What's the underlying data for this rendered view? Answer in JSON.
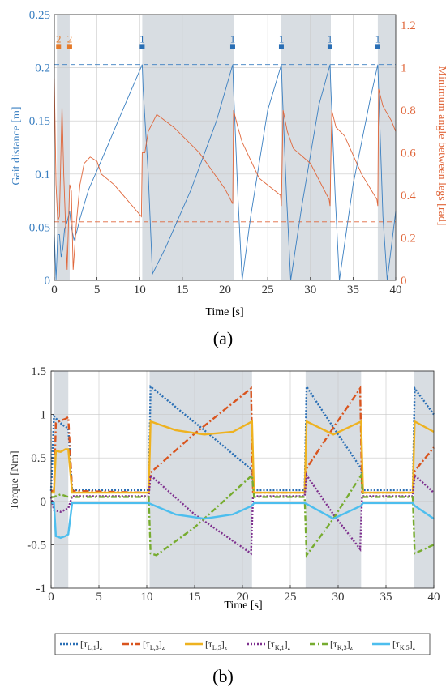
{
  "chart_data": [
    {
      "type": "line",
      "panel_label": "(a)",
      "xlabel": "Time [s]",
      "ylabel_left": "Gait distance [m]",
      "ylabel_right": "Minimum angle between legs [rad]",
      "xlim": [
        0,
        40
      ],
      "ylim_left": [
        0,
        0.25
      ],
      "ylim_right": [
        0,
        1.25
      ],
      "xticks": [
        "0",
        "5",
        "10",
        "15",
        "20",
        "25",
        "30",
        "35",
        "40"
      ],
      "yticks_left": [
        "0",
        "0.05",
        "0.1",
        "0.15",
        "0.2",
        "0.25"
      ],
      "yticks_right": [
        "0",
        "0.2",
        "0.4",
        "0.6",
        "0.8",
        "1",
        "1.2"
      ],
      "grid": true,
      "colors": {
        "left": "#3a7fc1",
        "right": "#e0663a",
        "shade": "#d8dde2",
        "marker1": "#2a6fb5",
        "marker2": "#e57b2b"
      },
      "shaded_intervals": [
        [
          0.3,
          1.8
        ],
        [
          10.3,
          21.0
        ],
        [
          26.6,
          32.4
        ],
        [
          37.9,
          40
        ]
      ],
      "reference_lines": [
        {
          "axis": "left",
          "y": 0.203
        },
        {
          "axis": "right",
          "y": 0.275
        }
      ],
      "markers": [
        {
          "label": "2",
          "x": 0.5,
          "color": "orange"
        },
        {
          "label": "2",
          "x": 1.8,
          "color": "orange"
        },
        {
          "label": "1",
          "x": 10.3,
          "color": "blue"
        },
        {
          "label": "1",
          "x": 20.9,
          "color": "blue"
        },
        {
          "label": "1",
          "x": 26.6,
          "color": "blue"
        },
        {
          "label": "1",
          "x": 32.3,
          "color": "blue"
        },
        {
          "label": "1",
          "x": 37.9,
          "color": "blue"
        }
      ],
      "series": [
        {
          "axis": "left",
          "x": [
            0,
            0.2,
            0.4,
            0.6,
            0.8,
            1.0,
            1.2,
            1.5,
            1.8,
            2.0,
            2.3,
            2.6,
            3.0,
            4.0,
            6.0,
            8.0,
            10.3,
            10.4,
            11.0,
            11.5,
            13.0,
            16.0,
            19.0,
            20.9,
            21.0,
            21.5,
            22.0,
            23.0,
            25.0,
            26.6,
            26.7,
            27.2,
            27.7,
            29.0,
            31.0,
            32.3,
            32.4,
            32.9,
            33.4,
            35.0,
            37.0,
            37.9,
            38.0,
            38.5,
            39.0,
            40.0
          ],
          "y": [
            0.043,
            0.0,
            0.043,
            0.043,
            0.022,
            0.03,
            0.048,
            0.055,
            0.065,
            0.05,
            0.038,
            0.045,
            0.058,
            0.085,
            0.122,
            0.16,
            0.203,
            0.18,
            0.1,
            0.006,
            0.03,
            0.085,
            0.15,
            0.203,
            0.18,
            0.08,
            0.0,
            0.06,
            0.16,
            0.203,
            0.18,
            0.08,
            0.0,
            0.07,
            0.165,
            0.203,
            0.18,
            0.08,
            0.0,
            0.09,
            0.17,
            0.203,
            0.18,
            0.06,
            0.0,
            0.065
          ]
        },
        {
          "axis": "right",
          "x": [
            0,
            0.2,
            0.4,
            0.6,
            0.9,
            1.1,
            1.5,
            1.8,
            2.0,
            2.2,
            2.6,
            3.0,
            3.5,
            4.2,
            5.0,
            5.5,
            7.0,
            8.5,
            10.2,
            10.3,
            10.6,
            11.0,
            12.0,
            14.0,
            17.0,
            20.0,
            20.9,
            21.0,
            21.5,
            22.0,
            24.0,
            26.5,
            26.6,
            26.8,
            27.3,
            28.0,
            30.0,
            32.2,
            32.3,
            32.5,
            33.0,
            34.0,
            36.0,
            37.8,
            37.9,
            38.0,
            38.5,
            39.5,
            40.0
          ],
          "y": [
            0.95,
            0.45,
            0.28,
            0.3,
            0.82,
            0.5,
            0.05,
            0.45,
            0.42,
            0.05,
            0.28,
            0.45,
            0.55,
            0.58,
            0.56,
            0.5,
            0.45,
            0.38,
            0.3,
            0.6,
            0.6,
            0.7,
            0.78,
            0.72,
            0.6,
            0.43,
            0.36,
            0.8,
            0.72,
            0.65,
            0.48,
            0.4,
            0.35,
            0.8,
            0.7,
            0.62,
            0.55,
            0.38,
            0.35,
            0.8,
            0.72,
            0.68,
            0.5,
            0.38,
            0.35,
            0.9,
            0.82,
            0.75,
            0.7
          ]
        }
      ]
    },
    {
      "type": "line",
      "panel_label": "(b)",
      "xlabel": "Time [s]",
      "ylabel": "Torque [Nm]",
      "xlim": [
        0,
        40
      ],
      "ylim": [
        -1,
        1.5
      ],
      "xticks": [
        "0",
        "5",
        "10",
        "15",
        "20",
        "25",
        "30",
        "35",
        "40"
      ],
      "yticks": [
        "-1",
        "-0.5",
        "0",
        "0.5",
        "1",
        "1.5"
      ],
      "grid": true,
      "shaded_intervals": [
        [
          0.3,
          1.8
        ],
        [
          10.3,
          21.0
        ],
        [
          26.6,
          32.4
        ],
        [
          37.9,
          40
        ]
      ],
      "legend_position": "bottom",
      "series": [
        {
          "name": "[τL,1]z",
          "legend": {
            "main": "[τ",
            "sub": "L,1",
            "close": "]",
            "subz": "z"
          },
          "color": "#2a6fb5",
          "dash": "2,2",
          "x": [
            0,
            0.3,
            0.8,
            1.2,
            1.8,
            2.2,
            10.2,
            10.4,
            16,
            21.0,
            21.2,
            26.5,
            26.7,
            29.5,
            32.4,
            32.6,
            37.8,
            38.0,
            40
          ],
          "y": [
            0.12,
            0.98,
            0.92,
            0.88,
            0.84,
            0.13,
            0.13,
            1.32,
            0.82,
            0.36,
            0.13,
            0.13,
            1.32,
            0.85,
            0.38,
            0.13,
            0.13,
            1.3,
            1.0
          ]
        },
        {
          "name": "[τL,3]z",
          "legend": {
            "main": "[τ",
            "sub": "L,3",
            "close": "]",
            "subz": "z"
          },
          "color": "#d9541e",
          "dash": "8,3,2,3",
          "x": [
            0,
            0.3,
            0.5,
            1.0,
            1.5,
            1.8,
            2.2,
            10.2,
            10.4,
            15,
            20.9,
            21.1,
            26.5,
            26.7,
            29.5,
            32.3,
            32.5,
            37.8,
            38.0,
            40
          ],
          "y": [
            0.12,
            0.12,
            0.9,
            0.93,
            0.95,
            0.97,
            0.12,
            0.1,
            0.33,
            0.78,
            1.3,
            0.1,
            0.1,
            0.38,
            0.85,
            1.3,
            0.1,
            0.1,
            0.35,
            0.62
          ]
        },
        {
          "name": "[τL,5]z",
          "legend": {
            "main": "[τ",
            "sub": "L,5",
            "close": "]",
            "subz": "z"
          },
          "color": "#eeb220",
          "dash": "",
          "x": [
            0,
            0.3,
            0.5,
            1.0,
            1.5,
            1.8,
            2.2,
            10.2,
            10.4,
            13,
            16,
            19,
            21.0,
            21.2,
            26.5,
            26.7,
            29.5,
            32.4,
            32.6,
            37.8,
            38.0,
            40
          ],
          "y": [
            0.1,
            0.1,
            0.58,
            0.57,
            0.6,
            0.6,
            0.1,
            0.1,
            0.92,
            0.82,
            0.77,
            0.8,
            0.92,
            0.1,
            0.1,
            0.92,
            0.77,
            0.92,
            0.1,
            0.1,
            0.92,
            0.8
          ]
        },
        {
          "name": "[τK,1]z",
          "legend": {
            "main": "[τ",
            "sub": "K,1",
            "close": "]",
            "subz": "z"
          },
          "color": "#7e2f8e",
          "dash": "2,2",
          "x": [
            0,
            0.3,
            1.0,
            1.8,
            2.2,
            10.2,
            10.4,
            15,
            20.9,
            21.1,
            26.5,
            26.7,
            29.5,
            32.3,
            32.5,
            37.8,
            38.0,
            40
          ],
          "y": [
            0.05,
            -0.1,
            -0.12,
            -0.08,
            0.06,
            0.06,
            0.3,
            -0.15,
            -0.6,
            0.06,
            0.06,
            0.3,
            -0.15,
            -0.55,
            0.06,
            0.06,
            0.3,
            0.1
          ]
        },
        {
          "name": "[τK,3]z",
          "legend": {
            "main": "[τ",
            "sub": "K,3",
            "close": "]",
            "subz": "z"
          },
          "color": "#77ac30",
          "dash": "7,3,2,3",
          "x": [
            0,
            0.3,
            1.0,
            1.8,
            2.2,
            10.2,
            10.4,
            11.0,
            15,
            21.0,
            21.2,
            26.5,
            26.7,
            29.5,
            32.4,
            32.6,
            37.8,
            38.0,
            40
          ],
          "y": [
            0.05,
            0.05,
            0.08,
            0.05,
            0.05,
            0.05,
            -0.6,
            -0.62,
            -0.3,
            0.3,
            0.05,
            0.05,
            -0.62,
            -0.2,
            0.3,
            0.05,
            0.05,
            -0.6,
            -0.5
          ]
        },
        {
          "name": "[τK,5]z",
          "legend": {
            "main": "[τ",
            "sub": "K,5",
            "close": "]",
            "subz": "z"
          },
          "color": "#4dbeee",
          "dash": "",
          "x": [
            0,
            0.3,
            0.5,
            1.0,
            1.5,
            1.8,
            2.2,
            10.2,
            10.4,
            13,
            16,
            19,
            21.0,
            21.2,
            26.5,
            26.7,
            29.5,
            32.4,
            32.6,
            37.8,
            38.0,
            40
          ],
          "y": [
            -0.02,
            -0.02,
            -0.4,
            -0.42,
            -0.4,
            -0.38,
            -0.02,
            -0.02,
            -0.03,
            -0.15,
            -0.2,
            -0.15,
            -0.05,
            -0.02,
            -0.02,
            -0.03,
            -0.2,
            -0.05,
            -0.02,
            -0.02,
            -0.05,
            -0.2
          ]
        }
      ]
    }
  ]
}
